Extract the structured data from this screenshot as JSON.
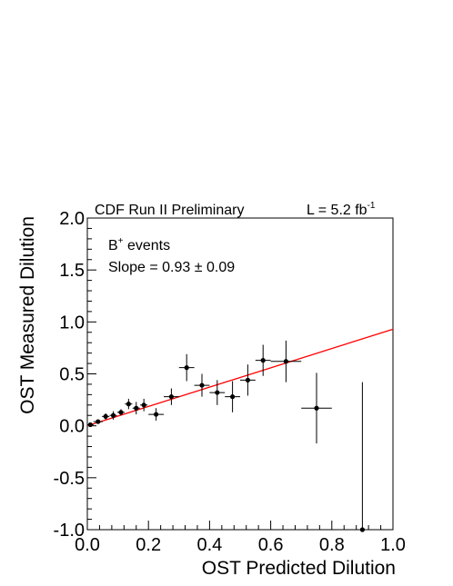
{
  "chart_data": {
    "type": "scatter",
    "header_left": "CDF Run II Preliminary",
    "header_right": "L = 5.2 fb",
    "header_right_sup": "-1",
    "xlabel": "OST Predicted Dilution",
    "ylabel": "OST Measured Dilution",
    "legend": {
      "line1_main": "B",
      "line1_sup": "+",
      "line1_rest": " events",
      "line2": "Slope = 0.93 ± 0.09"
    },
    "xlim": [
      0.0,
      1.0
    ],
    "ylim": [
      -1.0,
      2.0
    ],
    "x_ticks": [
      "0.0",
      "0.2",
      "0.4",
      "0.6",
      "0.8",
      "1.0"
    ],
    "y_ticks": [
      "-1.0",
      "-0.5",
      "0.0",
      "0.5",
      "1.0",
      "1.5",
      "2.0"
    ],
    "fit_line": {
      "color": "#ff0000",
      "x": [
        0.0,
        1.0
      ],
      "y": [
        0.0,
        0.93
      ]
    },
    "series": [
      {
        "marker_color": "#000000",
        "points": [
          {
            "x": 0.01,
            "y": 0.01,
            "xerr": 0.01,
            "yerr": 0.02
          },
          {
            "x": 0.035,
            "y": 0.04,
            "xerr": 0.015,
            "yerr": 0.02
          },
          {
            "x": 0.06,
            "y": 0.09,
            "xerr": 0.012,
            "yerr": 0.03
          },
          {
            "x": 0.085,
            "y": 0.1,
            "xerr": 0.012,
            "yerr": 0.04
          },
          {
            "x": 0.11,
            "y": 0.13,
            "xerr": 0.012,
            "yerr": 0.03
          },
          {
            "x": 0.135,
            "y": 0.21,
            "xerr": 0.012,
            "yerr": 0.05
          },
          {
            "x": 0.16,
            "y": 0.17,
            "xerr": 0.012,
            "yerr": 0.06
          },
          {
            "x": 0.185,
            "y": 0.2,
            "xerr": 0.012,
            "yerr": 0.06
          },
          {
            "x": 0.225,
            "y": 0.11,
            "xerr": 0.025,
            "yerr": 0.06
          },
          {
            "x": 0.275,
            "y": 0.28,
            "xerr": 0.025,
            "yerr": 0.08
          },
          {
            "x": 0.325,
            "y": 0.56,
            "xerr": 0.025,
            "yerr": 0.13
          },
          {
            "x": 0.375,
            "y": 0.39,
            "xerr": 0.025,
            "yerr": 0.11
          },
          {
            "x": 0.425,
            "y": 0.32,
            "xerr": 0.025,
            "yerr": 0.12
          },
          {
            "x": 0.475,
            "y": 0.28,
            "xerr": 0.025,
            "yerr": 0.15
          },
          {
            "x": 0.525,
            "y": 0.44,
            "xerr": 0.025,
            "yerr": 0.15
          },
          {
            "x": 0.575,
            "y": 0.63,
            "xerr": 0.025,
            "yerr": 0.15
          },
          {
            "x": 0.65,
            "y": 0.62,
            "xerr": 0.05,
            "yerr": 0.2
          },
          {
            "x": 0.75,
            "y": 0.17,
            "xerr": 0.05,
            "yerr": 0.34
          },
          {
            "x": 0.9,
            "y": -1.0,
            "xerr": 0.1,
            "yerr": 1.42
          }
        ]
      }
    ]
  }
}
